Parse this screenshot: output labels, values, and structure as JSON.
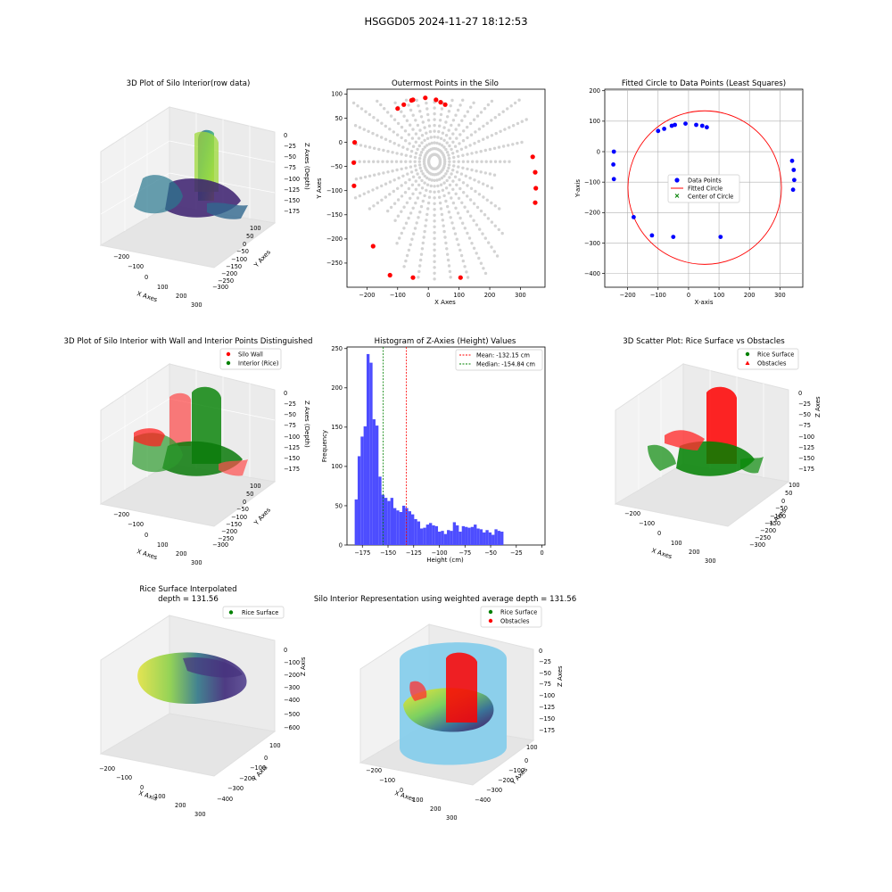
{
  "figure": {
    "suptitle": "HSGGD05 2024-11-27 18:12:53",
    "colors": {
      "rice": "#008000",
      "wall": "#ff0000",
      "blue_points": "#0000ff",
      "grey_points": "#d3d3d3",
      "hist_bar": "#4d4dff",
      "silo_fill": "#87ceeb",
      "mean_line": "#ff0000",
      "median_line": "#008000"
    }
  },
  "chart_data": [
    {
      "id": "p1",
      "type": "scatter3d",
      "title": "3D Plot of Silo Interior(row data)",
      "xlabel": "X Axes",
      "ylabel": "Y Axes",
      "zlabel": "Z Axes (Depth)",
      "x_ticks": [
        "−200",
        "−100",
        "0",
        "100",
        "200",
        "300"
      ],
      "y_ticks": [
        "100",
        "50",
        "0",
        "−50",
        "−100",
        "−150",
        "−200",
        "−250",
        "−300"
      ],
      "z_ticks": [
        "0",
        "−25",
        "−50",
        "−75",
        "−100",
        "−125",
        "−150",
        "−175"
      ],
      "colormap": "viridis"
    },
    {
      "id": "p2",
      "type": "scatter",
      "title": "Outermost Points in the Silo",
      "xlabel": "X Axes",
      "ylabel": "Y Axes",
      "xlim": [
        -265,
        380
      ],
      "ylim": [
        -300,
        110
      ],
      "x_ticks": [
        -200,
        -100,
        0,
        100,
        200,
        300
      ],
      "y_ticks": [
        -250,
        -200,
        -150,
        -100,
        -50,
        0,
        50,
        100
      ],
      "outermost_points": [
        [
          -240,
          0
        ],
        [
          -243,
          -42
        ],
        [
          -242,
          -90
        ],
        [
          -100,
          70
        ],
        [
          -80,
          78
        ],
        [
          -55,
          87
        ],
        [
          -50,
          88
        ],
        [
          -10,
          92
        ],
        [
          25,
          88
        ],
        [
          40,
          83
        ],
        [
          55,
          78
        ],
        [
          340,
          -30
        ],
        [
          348,
          -62
        ],
        [
          350,
          -95
        ],
        [
          348,
          -125
        ],
        [
          -180,
          -215
        ],
        [
          -125,
          -275
        ],
        [
          -50,
          -280
        ],
        [
          105,
          -280
        ]
      ]
    },
    {
      "id": "p3",
      "type": "scatter",
      "title": "Fitted Circle to Data Points (Least Squares)",
      "xlabel": "X-axis",
      "ylabel": "Y-axis",
      "xlim": [
        -275,
        375
      ],
      "ylim": [
        -445,
        205
      ],
      "x_ticks": [
        -200,
        -100,
        0,
        100,
        200,
        300
      ],
      "y_ticks": [
        -400,
        -300,
        -200,
        -100,
        0,
        100,
        200
      ],
      "grid": true,
      "legend_loc": "center",
      "legend": [
        "Data Points",
        "Fitted Circle",
        "Center of Circle"
      ],
      "circle": {
        "center": [
          53,
          -118
        ],
        "radius": 252
      },
      "data_points": [
        [
          -245,
          0
        ],
        [
          -247,
          -42
        ],
        [
          -245,
          -90
        ],
        [
          -100,
          68
        ],
        [
          -80,
          75
        ],
        [
          -55,
          85
        ],
        [
          -45,
          88
        ],
        [
          -10,
          92
        ],
        [
          25,
          88
        ],
        [
          45,
          85
        ],
        [
          60,
          80
        ],
        [
          340,
          -30
        ],
        [
          345,
          -60
        ],
        [
          347,
          -93
        ],
        [
          343,
          -125
        ],
        [
          -180,
          -215
        ],
        [
          -120,
          -275
        ],
        [
          -50,
          -280
        ],
        [
          105,
          -280
        ]
      ]
    },
    {
      "id": "p4",
      "type": "scatter3d",
      "title": "3D Plot of Silo Interior with Wall and Interior Points Distinguished",
      "xlabel": "X Axes",
      "ylabel": "Y Axes",
      "zlabel": "Z Axes (Depth)",
      "legend": [
        "Silo Wall",
        "Interior (Rice)"
      ],
      "legend_loc": "upper right",
      "x_ticks": [
        "−200",
        "−100",
        "0",
        "100",
        "200",
        "300"
      ],
      "y_ticks": [
        "100",
        "50",
        "0",
        "−50",
        "−100",
        "−150",
        "−200",
        "−250",
        "−300"
      ],
      "z_ticks": [
        "0",
        "−25",
        "−50",
        "−75",
        "−100",
        "−125",
        "−150",
        "−175"
      ]
    },
    {
      "id": "p5",
      "type": "bar",
      "title": "Histogram of Z-Axies (Height) Values",
      "xlabel": "Height (cm)",
      "ylabel": "Frequency",
      "xlim": [
        -190,
        3
      ],
      "ylim": [
        0,
        252
      ],
      "x_ticks": [
        -175,
        -150,
        -125,
        -100,
        -75,
        -50,
        -25,
        0
      ],
      "y_ticks": [
        0,
        50,
        100,
        150,
        200,
        250
      ],
      "bin_start": -182.5,
      "bin_width": 2.9,
      "frequencies": [
        58,
        113,
        138,
        151,
        243,
        232,
        160,
        152,
        87,
        64,
        60,
        56,
        60,
        47,
        44,
        42,
        50,
        47,
        43,
        39,
        33,
        30,
        21,
        22,
        26,
        28,
        25,
        24,
        17,
        18,
        14,
        19,
        18,
        29,
        25,
        17,
        24,
        23,
        22,
        23,
        26,
        21,
        20,
        16,
        19,
        16,
        13,
        20,
        18,
        17
      ],
      "mean_line": {
        "value": -132.15,
        "label": "Mean: -132.15 cm"
      },
      "median_line": {
        "value": -154.84,
        "label": "Median: -154.84 cm"
      },
      "legend_loc": "upper right"
    },
    {
      "id": "p6",
      "type": "scatter3d",
      "title": "3D Scatter Plot: Rice Surface vs Obstacles",
      "xlabel": "X Axes",
      "ylabel": "Y Axes",
      "zlabel": "Z Axes",
      "legend": [
        "Rice Surface",
        "Obstacles"
      ],
      "legend_loc": "upper right",
      "x_ticks": [
        "−200",
        "−100",
        "0",
        "100",
        "200",
        "300"
      ],
      "y_ticks": [
        "100",
        "50",
        "0",
        "−50",
        "−100",
        "−150",
        "−200",
        "−250",
        "−300"
      ],
      "z_ticks": [
        "0",
        "−25",
        "−50",
        "−75",
        "−100",
        "−125",
        "−150",
        "−175"
      ]
    },
    {
      "id": "p7",
      "type": "surface3d",
      "title_line1": "Rice Surface Interpolated",
      "title_line2": "depth = 131.56",
      "xlabel": "X Axis",
      "ylabel": "Y Axis",
      "zlabel": "Z Axis",
      "legend": [
        "Rice Surface"
      ],
      "legend_loc": "upper right",
      "x_ticks": [
        "−200",
        "−100",
        "0",
        "100",
        "200",
        "300"
      ],
      "y_ticks": [
        "100",
        "0",
        "−100",
        "−200",
        "−300",
        "−400"
      ],
      "z_ticks": [
        "0",
        "−100",
        "−200",
        "−300",
        "−400",
        "−500",
        "−600"
      ]
    },
    {
      "id": "p8",
      "type": "surface3d",
      "title": "Silo Interior Representation using weighted average depth = 131.56",
      "xlabel": "X Axes",
      "ylabel": "Y Axes",
      "zlabel": "Z Axes",
      "legend": [
        "Rice Surface",
        "Obstacles"
      ],
      "legend_loc": "upper right",
      "x_ticks": [
        "−200",
        "−100",
        "0",
        "100",
        "200",
        "300"
      ],
      "y_ticks": [
        "100",
        "0",
        "−100",
        "−200",
        "−300",
        "−400"
      ],
      "z_ticks": [
        "0",
        "−25",
        "−50",
        "−75",
        "−100",
        "−125",
        "−150",
        "−175"
      ]
    }
  ]
}
